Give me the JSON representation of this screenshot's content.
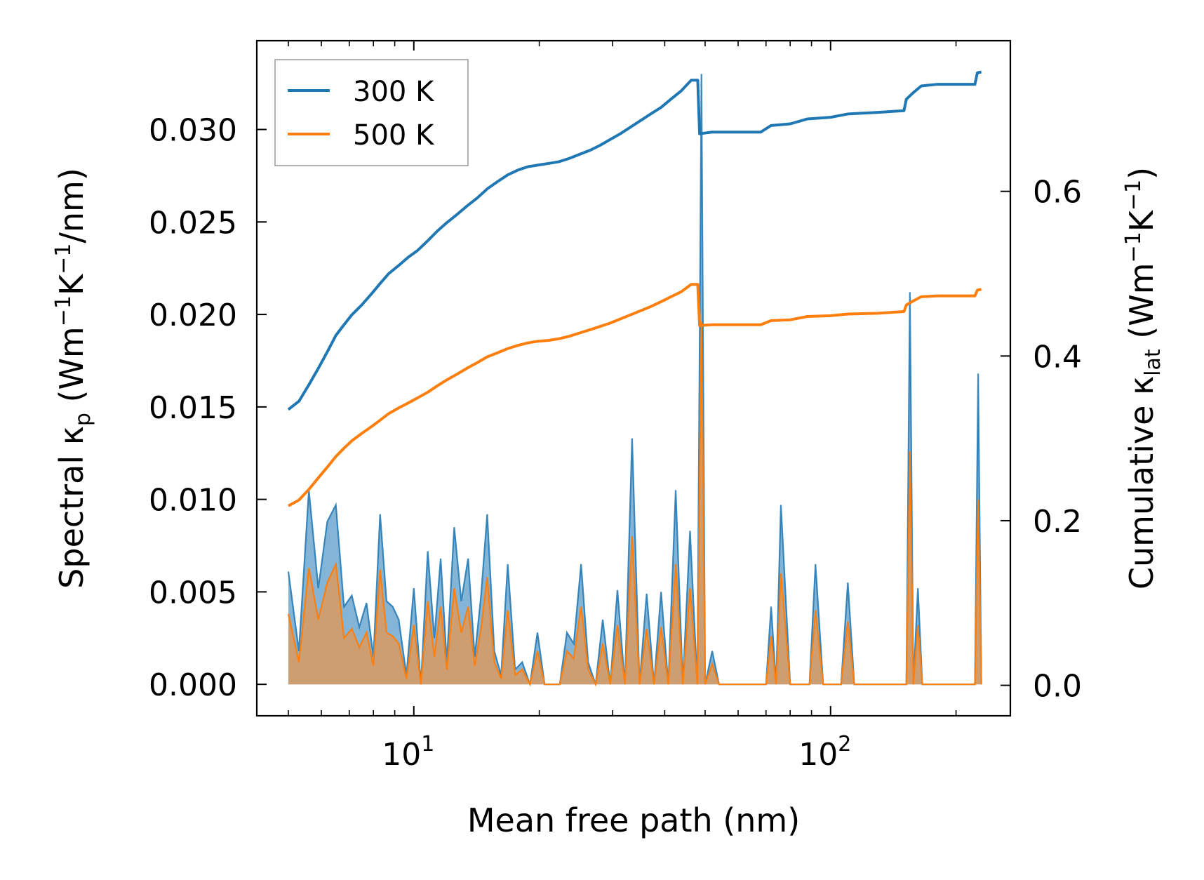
{
  "chart_data": {
    "type": "line",
    "x_scale": "log",
    "xlim": [
      4.2,
      270
    ],
    "ylim_left": [
      -0.0017,
      0.0348
    ],
    "ylim_right": [
      -0.037,
      0.783
    ],
    "xlabel": "Mean free path (nm)",
    "ylabel_left": {
      "base": "Spectral κ",
      "sub": "p",
      "unit_pre": " (Wm",
      "exp1": "−1",
      "mid": "K",
      "exp2": "−1",
      "tail": "/nm)"
    },
    "ylabel_right": {
      "base": "Cumulative κ",
      "sub": "lat",
      "unit_pre": " (Wm",
      "exp1": "−1",
      "mid": "K",
      "exp2": "−1",
      "tail": ")"
    },
    "x_ticks": [
      {
        "value": 10,
        "base": "10",
        "exp": "1"
      },
      {
        "value": 100,
        "base": "10",
        "exp": "2"
      }
    ],
    "y_ticks_left": [
      "0.000",
      "0.005",
      "0.010",
      "0.015",
      "0.020",
      "0.025",
      "0.030"
    ],
    "y_ticks_right": [
      "0.0",
      "0.2",
      "0.4",
      "0.6"
    ],
    "colors": {
      "s300": "#1f77b4",
      "s500": "#ff7f0e",
      "fill300": "#1f77b4",
      "fill500": "#d99a5f"
    },
    "legend": {
      "position": "upper left",
      "entries": [
        "300 K",
        "500 K"
      ]
    },
    "spectral": {
      "x": [
        5.0,
        5.3,
        5.6,
        5.9,
        6.2,
        6.5,
        6.8,
        7.1,
        7.4,
        7.7,
        8.0,
        8.3,
        8.6,
        8.9,
        9.2,
        9.6,
        10.0,
        10.4,
        10.8,
        11.2,
        11.6,
        12.0,
        12.5,
        13.0,
        13.5,
        14.0,
        14.5,
        15.0,
        15.6,
        16.2,
        16.8,
        17.5,
        18.2,
        19.0,
        19.8,
        20.6,
        21.5,
        22.4,
        23.3,
        24.2,
        25.2,
        26.2,
        27.3,
        28.4,
        29.6,
        30.8,
        32.1,
        33.4,
        34.8,
        36.2,
        37.7,
        39.2,
        40.8,
        42.5,
        44.2,
        46.0,
        47.9,
        49.0,
        50.0,
        52.0,
        54.0,
        56.0,
        60.0,
        65.0,
        70.0,
        72.0,
        74.0,
        76.0,
        80.0,
        85.0,
        89.0,
        92.0,
        96.0,
        100.0,
        106.0,
        110.0,
        114.0,
        120.0,
        130.0,
        140.0,
        152.0,
        155.0,
        158.0,
        162.0,
        166.0,
        170.0,
        180.0,
        195.0,
        210.0,
        222.0,
        226.0,
        230.0
      ],
      "k300": [
        0.0061,
        0.0018,
        0.0105,
        0.0052,
        0.0088,
        0.0097,
        0.0042,
        0.0048,
        0.0031,
        0.0044,
        0.0015,
        0.0092,
        0.0045,
        0.0042,
        0.0035,
        0.0005,
        0.0052,
        0.0,
        0.0072,
        0.0025,
        0.0068,
        0.0012,
        0.0085,
        0.0045,
        0.0068,
        0.0015,
        0.0048,
        0.0092,
        0.0018,
        0.0005,
        0.0065,
        0.0008,
        0.0012,
        0.0,
        0.0028,
        0.0,
        0.0,
        0.0,
        0.0028,
        0.0022,
        0.0065,
        0.0012,
        0.0,
        0.0035,
        0.0,
        0.0051,
        0.0,
        0.0133,
        0.0,
        0.0049,
        0.0,
        0.005,
        0.0,
        0.0105,
        0.0,
        0.0083,
        0.0,
        0.033,
        0.0,
        0.0018,
        0.0,
        0.0,
        0.0,
        0.0,
        0.0,
        0.0042,
        0.0,
        0.0097,
        0.0,
        0.0,
        0.0,
        0.0065,
        0.0,
        0.0,
        0.0,
        0.0055,
        0.0,
        0.0,
        0.0,
        0.0,
        0.0,
        0.0212,
        0.0,
        0.0052,
        0.0,
        0.0,
        0.0,
        0.0,
        0.0,
        0.0,
        0.0168,
        0.0
      ],
      "k500": [
        0.0038,
        0.0012,
        0.0063,
        0.0035,
        0.0055,
        0.0065,
        0.0025,
        0.003,
        0.002,
        0.0028,
        0.001,
        0.0062,
        0.0028,
        0.0026,
        0.0022,
        0.0003,
        0.0032,
        0.0,
        0.0045,
        0.0015,
        0.0042,
        0.0008,
        0.0052,
        0.0028,
        0.0042,
        0.001,
        0.003,
        0.0058,
        0.0012,
        0.0003,
        0.004,
        0.0005,
        0.0008,
        0.0,
        0.0018,
        0.0,
        0.0,
        0.0,
        0.0018,
        0.0014,
        0.0042,
        0.0008,
        0.0,
        0.0022,
        0.0,
        0.0032,
        0.0,
        0.008,
        0.0,
        0.003,
        0.0,
        0.0031,
        0.0,
        0.0065,
        0.0,
        0.0052,
        0.0,
        0.0196,
        0.0,
        0.0011,
        0.0,
        0.0,
        0.0,
        0.0,
        0.0,
        0.0026,
        0.0,
        0.006,
        0.0,
        0.0,
        0.0,
        0.004,
        0.0,
        0.0,
        0.0,
        0.0034,
        0.0,
        0.0,
        0.0,
        0.0,
        0.0,
        0.0126,
        0.0,
        0.0032,
        0.0,
        0.0,
        0.0,
        0.0,
        0.0,
        0.0,
        0.01,
        0.0
      ]
    },
    "cumulative": {
      "x": [
        5.0,
        5.3,
        5.6,
        5.9,
        6.2,
        6.5,
        6.8,
        7.1,
        7.5,
        7.9,
        8.3,
        8.7,
        9.2,
        9.7,
        10.2,
        10.8,
        11.4,
        12.0,
        12.7,
        13.4,
        14.2,
        15.0,
        15.9,
        16.8,
        17.8,
        18.8,
        19.9,
        21.1,
        22.3,
        23.6,
        25.0,
        26.5,
        28.0,
        29.6,
        31.3,
        33.1,
        35.0,
        37.0,
        39.2,
        41.4,
        43.8,
        46.3,
        48.0,
        48.5,
        52.0,
        58.0,
        68.0,
        72.0,
        80.0,
        88.0,
        100.0,
        110.0,
        130.0,
        150.0,
        152.0,
        158.0,
        165.0,
        180.0,
        200.0,
        222.0,
        225.0,
        230.0
      ],
      "c300": [
        0.335,
        0.345,
        0.365,
        0.385,
        0.405,
        0.425,
        0.438,
        0.45,
        0.462,
        0.475,
        0.488,
        0.5,
        0.51,
        0.52,
        0.528,
        0.54,
        0.552,
        0.562,
        0.572,
        0.582,
        0.592,
        0.603,
        0.612,
        0.62,
        0.626,
        0.63,
        0.632,
        0.634,
        0.636,
        0.64,
        0.645,
        0.65,
        0.656,
        0.663,
        0.67,
        0.678,
        0.686,
        0.694,
        0.702,
        0.712,
        0.722,
        0.735,
        0.735,
        0.67,
        0.672,
        0.672,
        0.672,
        0.68,
        0.682,
        0.688,
        0.69,
        0.694,
        0.696,
        0.698,
        0.712,
        0.72,
        0.728,
        0.73,
        0.73,
        0.73,
        0.744,
        0.745
      ],
      "c500": [
        0.218,
        0.225,
        0.238,
        0.252,
        0.265,
        0.278,
        0.288,
        0.297,
        0.306,
        0.314,
        0.322,
        0.33,
        0.337,
        0.343,
        0.349,
        0.356,
        0.364,
        0.371,
        0.378,
        0.385,
        0.392,
        0.399,
        0.404,
        0.409,
        0.413,
        0.416,
        0.418,
        0.419,
        0.421,
        0.424,
        0.428,
        0.432,
        0.436,
        0.44,
        0.445,
        0.45,
        0.455,
        0.46,
        0.466,
        0.472,
        0.478,
        0.487,
        0.487,
        0.437,
        0.438,
        0.438,
        0.438,
        0.443,
        0.444,
        0.448,
        0.449,
        0.451,
        0.452,
        0.454,
        0.462,
        0.467,
        0.472,
        0.473,
        0.473,
        0.473,
        0.48,
        0.481
      ]
    }
  }
}
